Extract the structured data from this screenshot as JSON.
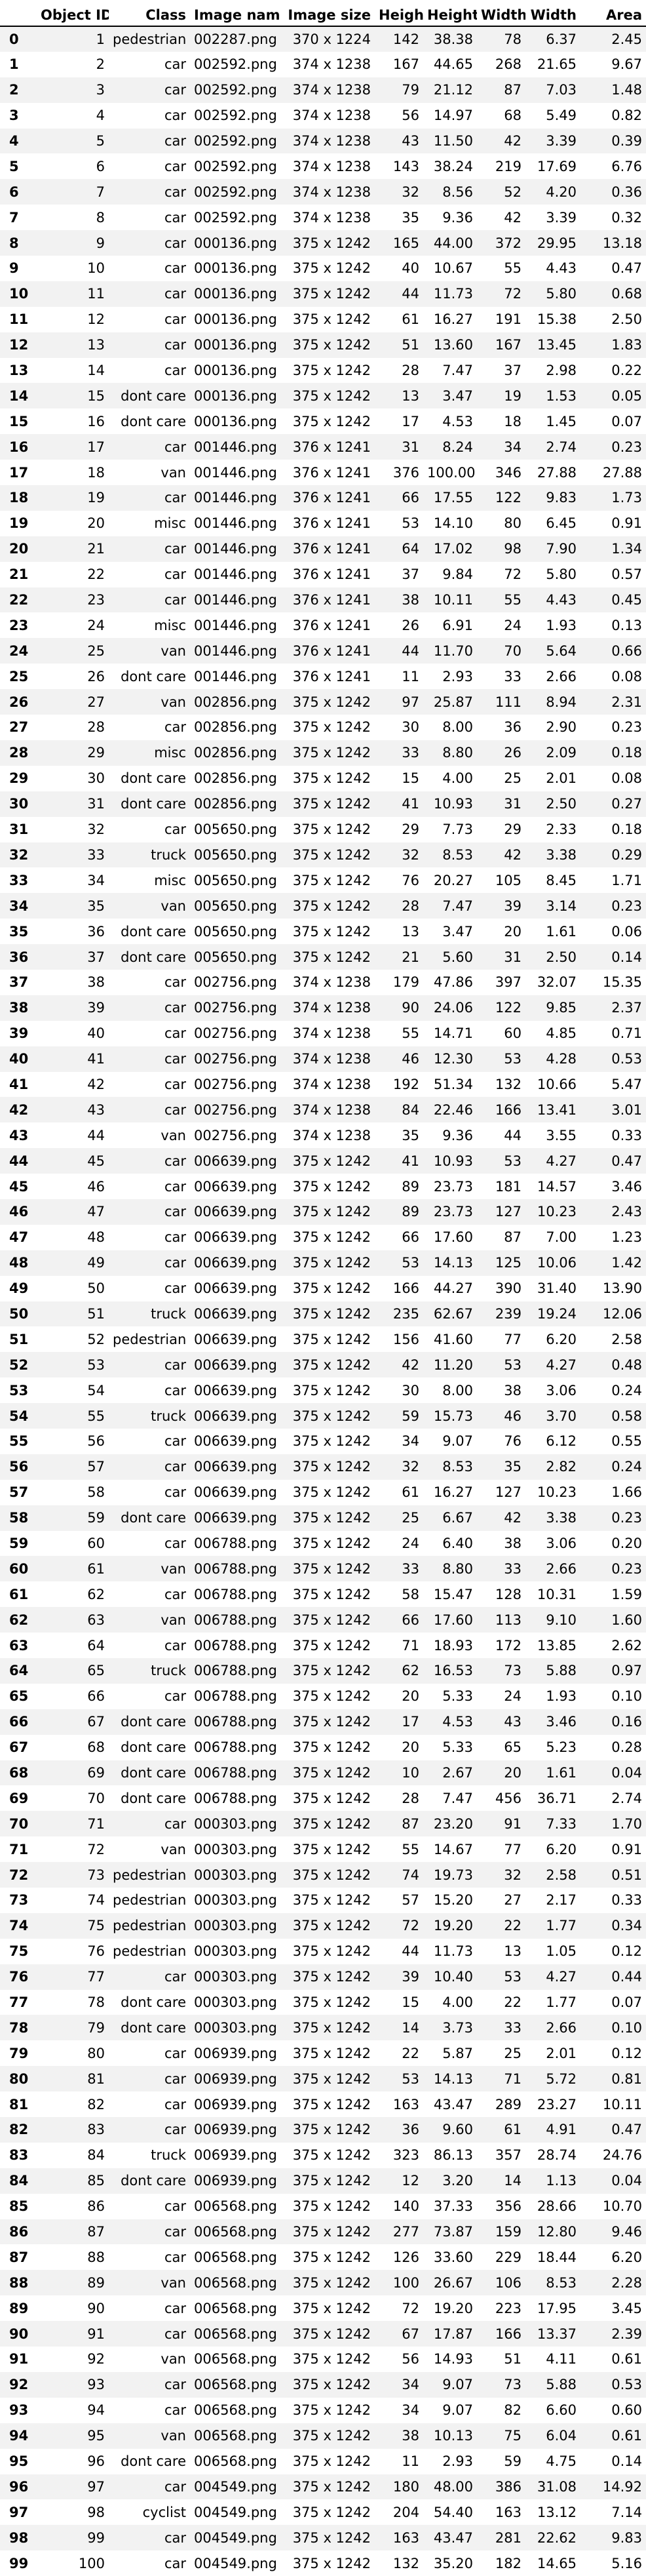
{
  "table": {
    "columns": [
      "",
      "Object ID",
      "Class",
      "Image name",
      "Image size",
      "Height",
      "Height",
      "Width",
      "Width",
      "Area"
    ],
    "rows": [
      [
        "0",
        "1",
        "pedestrian",
        "002287.png",
        "370 x 1224",
        "142",
        "38.38",
        "78",
        "6.37",
        "2.45"
      ],
      [
        "1",
        "2",
        "car",
        "002592.png",
        "374 x 1238",
        "167",
        "44.65",
        "268",
        "21.65",
        "9.67"
      ],
      [
        "2",
        "3",
        "car",
        "002592.png",
        "374 x 1238",
        "79",
        "21.12",
        "87",
        "7.03",
        "1.48"
      ],
      [
        "3",
        "4",
        "car",
        "002592.png",
        "374 x 1238",
        "56",
        "14.97",
        "68",
        "5.49",
        "0.82"
      ],
      [
        "4",
        "5",
        "car",
        "002592.png",
        "374 x 1238",
        "43",
        "11.50",
        "42",
        "3.39",
        "0.39"
      ],
      [
        "5",
        "6",
        "car",
        "002592.png",
        "374 x 1238",
        "143",
        "38.24",
        "219",
        "17.69",
        "6.76"
      ],
      [
        "6",
        "7",
        "car",
        "002592.png",
        "374 x 1238",
        "32",
        "8.56",
        "52",
        "4.20",
        "0.36"
      ],
      [
        "7",
        "8",
        "car",
        "002592.png",
        "374 x 1238",
        "35",
        "9.36",
        "42",
        "3.39",
        "0.32"
      ],
      [
        "8",
        "9",
        "car",
        "000136.png",
        "375 x 1242",
        "165",
        "44.00",
        "372",
        "29.95",
        "13.18"
      ],
      [
        "9",
        "10",
        "car",
        "000136.png",
        "375 x 1242",
        "40",
        "10.67",
        "55",
        "4.43",
        "0.47"
      ],
      [
        "10",
        "11",
        "car",
        "000136.png",
        "375 x 1242",
        "44",
        "11.73",
        "72",
        "5.80",
        "0.68"
      ],
      [
        "11",
        "12",
        "car",
        "000136.png",
        "375 x 1242",
        "61",
        "16.27",
        "191",
        "15.38",
        "2.50"
      ],
      [
        "12",
        "13",
        "car",
        "000136.png",
        "375 x 1242",
        "51",
        "13.60",
        "167",
        "13.45",
        "1.83"
      ],
      [
        "13",
        "14",
        "car",
        "000136.png",
        "375 x 1242",
        "28",
        "7.47",
        "37",
        "2.98",
        "0.22"
      ],
      [
        "14",
        "15",
        "dont care",
        "000136.png",
        "375 x 1242",
        "13",
        "3.47",
        "19",
        "1.53",
        "0.05"
      ],
      [
        "15",
        "16",
        "dont care",
        "000136.png",
        "375 x 1242",
        "17",
        "4.53",
        "18",
        "1.45",
        "0.07"
      ],
      [
        "16",
        "17",
        "car",
        "001446.png",
        "376 x 1241",
        "31",
        "8.24",
        "34",
        "2.74",
        "0.23"
      ],
      [
        "17",
        "18",
        "van",
        "001446.png",
        "376 x 1241",
        "376",
        "100.00",
        "346",
        "27.88",
        "27.88"
      ],
      [
        "18",
        "19",
        "car",
        "001446.png",
        "376 x 1241",
        "66",
        "17.55",
        "122",
        "9.83",
        "1.73"
      ],
      [
        "19",
        "20",
        "misc",
        "001446.png",
        "376 x 1241",
        "53",
        "14.10",
        "80",
        "6.45",
        "0.91"
      ],
      [
        "20",
        "21",
        "car",
        "001446.png",
        "376 x 1241",
        "64",
        "17.02",
        "98",
        "7.90",
        "1.34"
      ],
      [
        "21",
        "22",
        "car",
        "001446.png",
        "376 x 1241",
        "37",
        "9.84",
        "72",
        "5.80",
        "0.57"
      ],
      [
        "22",
        "23",
        "car",
        "001446.png",
        "376 x 1241",
        "38",
        "10.11",
        "55",
        "4.43",
        "0.45"
      ],
      [
        "23",
        "24",
        "misc",
        "001446.png",
        "376 x 1241",
        "26",
        "6.91",
        "24",
        "1.93",
        "0.13"
      ],
      [
        "24",
        "25",
        "van",
        "001446.png",
        "376 x 1241",
        "44",
        "11.70",
        "70",
        "5.64",
        "0.66"
      ],
      [
        "25",
        "26",
        "dont care",
        "001446.png",
        "376 x 1241",
        "11",
        "2.93",
        "33",
        "2.66",
        "0.08"
      ],
      [
        "26",
        "27",
        "van",
        "002856.png",
        "375 x 1242",
        "97",
        "25.87",
        "111",
        "8.94",
        "2.31"
      ],
      [
        "27",
        "28",
        "car",
        "002856.png",
        "375 x 1242",
        "30",
        "8.00",
        "36",
        "2.90",
        "0.23"
      ],
      [
        "28",
        "29",
        "misc",
        "002856.png",
        "375 x 1242",
        "33",
        "8.80",
        "26",
        "2.09",
        "0.18"
      ],
      [
        "29",
        "30",
        "dont care",
        "002856.png",
        "375 x 1242",
        "15",
        "4.00",
        "25",
        "2.01",
        "0.08"
      ],
      [
        "30",
        "31",
        "dont care",
        "002856.png",
        "375 x 1242",
        "41",
        "10.93",
        "31",
        "2.50",
        "0.27"
      ],
      [
        "31",
        "32",
        "car",
        "005650.png",
        "375 x 1242",
        "29",
        "7.73",
        "29",
        "2.33",
        "0.18"
      ],
      [
        "32",
        "33",
        "truck",
        "005650.png",
        "375 x 1242",
        "32",
        "8.53",
        "42",
        "3.38",
        "0.29"
      ],
      [
        "33",
        "34",
        "misc",
        "005650.png",
        "375 x 1242",
        "76",
        "20.27",
        "105",
        "8.45",
        "1.71"
      ],
      [
        "34",
        "35",
        "van",
        "005650.png",
        "375 x 1242",
        "28",
        "7.47",
        "39",
        "3.14",
        "0.23"
      ],
      [
        "35",
        "36",
        "dont care",
        "005650.png",
        "375 x 1242",
        "13",
        "3.47",
        "20",
        "1.61",
        "0.06"
      ],
      [
        "36",
        "37",
        "dont care",
        "005650.png",
        "375 x 1242",
        "21",
        "5.60",
        "31",
        "2.50",
        "0.14"
      ],
      [
        "37",
        "38",
        "car",
        "002756.png",
        "374 x 1238",
        "179",
        "47.86",
        "397",
        "32.07",
        "15.35"
      ],
      [
        "38",
        "39",
        "car",
        "002756.png",
        "374 x 1238",
        "90",
        "24.06",
        "122",
        "9.85",
        "2.37"
      ],
      [
        "39",
        "40",
        "car",
        "002756.png",
        "374 x 1238",
        "55",
        "14.71",
        "60",
        "4.85",
        "0.71"
      ],
      [
        "40",
        "41",
        "car",
        "002756.png",
        "374 x 1238",
        "46",
        "12.30",
        "53",
        "4.28",
        "0.53"
      ],
      [
        "41",
        "42",
        "car",
        "002756.png",
        "374 x 1238",
        "192",
        "51.34",
        "132",
        "10.66",
        "5.47"
      ],
      [
        "42",
        "43",
        "car",
        "002756.png",
        "374 x 1238",
        "84",
        "22.46",
        "166",
        "13.41",
        "3.01"
      ],
      [
        "43",
        "44",
        "van",
        "002756.png",
        "374 x 1238",
        "35",
        "9.36",
        "44",
        "3.55",
        "0.33"
      ],
      [
        "44",
        "45",
        "car",
        "006639.png",
        "375 x 1242",
        "41",
        "10.93",
        "53",
        "4.27",
        "0.47"
      ],
      [
        "45",
        "46",
        "car",
        "006639.png",
        "375 x 1242",
        "89",
        "23.73",
        "181",
        "14.57",
        "3.46"
      ],
      [
        "46",
        "47",
        "car",
        "006639.png",
        "375 x 1242",
        "89",
        "23.73",
        "127",
        "10.23",
        "2.43"
      ],
      [
        "47",
        "48",
        "car",
        "006639.png",
        "375 x 1242",
        "66",
        "17.60",
        "87",
        "7.00",
        "1.23"
      ],
      [
        "48",
        "49",
        "car",
        "006639.png",
        "375 x 1242",
        "53",
        "14.13",
        "125",
        "10.06",
        "1.42"
      ],
      [
        "49",
        "50",
        "car",
        "006639.png",
        "375 x 1242",
        "166",
        "44.27",
        "390",
        "31.40",
        "13.90"
      ],
      [
        "50",
        "51",
        "truck",
        "006639.png",
        "375 x 1242",
        "235",
        "62.67",
        "239",
        "19.24",
        "12.06"
      ],
      [
        "51",
        "52",
        "pedestrian",
        "006639.png",
        "375 x 1242",
        "156",
        "41.60",
        "77",
        "6.20",
        "2.58"
      ],
      [
        "52",
        "53",
        "car",
        "006639.png",
        "375 x 1242",
        "42",
        "11.20",
        "53",
        "4.27",
        "0.48"
      ],
      [
        "53",
        "54",
        "car",
        "006639.png",
        "375 x 1242",
        "30",
        "8.00",
        "38",
        "3.06",
        "0.24"
      ],
      [
        "54",
        "55",
        "truck",
        "006639.png",
        "375 x 1242",
        "59",
        "15.73",
        "46",
        "3.70",
        "0.58"
      ],
      [
        "55",
        "56",
        "car",
        "006639.png",
        "375 x 1242",
        "34",
        "9.07",
        "76",
        "6.12",
        "0.55"
      ],
      [
        "56",
        "57",
        "car",
        "006639.png",
        "375 x 1242",
        "32",
        "8.53",
        "35",
        "2.82",
        "0.24"
      ],
      [
        "57",
        "58",
        "car",
        "006639.png",
        "375 x 1242",
        "61",
        "16.27",
        "127",
        "10.23",
        "1.66"
      ],
      [
        "58",
        "59",
        "dont care",
        "006639.png",
        "375 x 1242",
        "25",
        "6.67",
        "42",
        "3.38",
        "0.23"
      ],
      [
        "59",
        "60",
        "car",
        "006788.png",
        "375 x 1242",
        "24",
        "6.40",
        "38",
        "3.06",
        "0.20"
      ],
      [
        "60",
        "61",
        "van",
        "006788.png",
        "375 x 1242",
        "33",
        "8.80",
        "33",
        "2.66",
        "0.23"
      ],
      [
        "61",
        "62",
        "car",
        "006788.png",
        "375 x 1242",
        "58",
        "15.47",
        "128",
        "10.31",
        "1.59"
      ],
      [
        "62",
        "63",
        "van",
        "006788.png",
        "375 x 1242",
        "66",
        "17.60",
        "113",
        "9.10",
        "1.60"
      ],
      [
        "63",
        "64",
        "car",
        "006788.png",
        "375 x 1242",
        "71",
        "18.93",
        "172",
        "13.85",
        "2.62"
      ],
      [
        "64",
        "65",
        "truck",
        "006788.png",
        "375 x 1242",
        "62",
        "16.53",
        "73",
        "5.88",
        "0.97"
      ],
      [
        "65",
        "66",
        "car",
        "006788.png",
        "375 x 1242",
        "20",
        "5.33",
        "24",
        "1.93",
        "0.10"
      ],
      [
        "66",
        "67",
        "dont care",
        "006788.png",
        "375 x 1242",
        "17",
        "4.53",
        "43",
        "3.46",
        "0.16"
      ],
      [
        "67",
        "68",
        "dont care",
        "006788.png",
        "375 x 1242",
        "20",
        "5.33",
        "65",
        "5.23",
        "0.28"
      ],
      [
        "68",
        "69",
        "dont care",
        "006788.png",
        "375 x 1242",
        "10",
        "2.67",
        "20",
        "1.61",
        "0.04"
      ],
      [
        "69",
        "70",
        "dont care",
        "006788.png",
        "375 x 1242",
        "28",
        "7.47",
        "456",
        "36.71",
        "2.74"
      ],
      [
        "70",
        "71",
        "car",
        "000303.png",
        "375 x 1242",
        "87",
        "23.20",
        "91",
        "7.33",
        "1.70"
      ],
      [
        "71",
        "72",
        "van",
        "000303.png",
        "375 x 1242",
        "55",
        "14.67",
        "77",
        "6.20",
        "0.91"
      ],
      [
        "72",
        "73",
        "pedestrian",
        "000303.png",
        "375 x 1242",
        "74",
        "19.73",
        "32",
        "2.58",
        "0.51"
      ],
      [
        "73",
        "74",
        "pedestrian",
        "000303.png",
        "375 x 1242",
        "57",
        "15.20",
        "27",
        "2.17",
        "0.33"
      ],
      [
        "74",
        "75",
        "pedestrian",
        "000303.png",
        "375 x 1242",
        "72",
        "19.20",
        "22",
        "1.77",
        "0.34"
      ],
      [
        "75",
        "76",
        "pedestrian",
        "000303.png",
        "375 x 1242",
        "44",
        "11.73",
        "13",
        "1.05",
        "0.12"
      ],
      [
        "76",
        "77",
        "car",
        "000303.png",
        "375 x 1242",
        "39",
        "10.40",
        "53",
        "4.27",
        "0.44"
      ],
      [
        "77",
        "78",
        "dont care",
        "000303.png",
        "375 x 1242",
        "15",
        "4.00",
        "22",
        "1.77",
        "0.07"
      ],
      [
        "78",
        "79",
        "dont care",
        "000303.png",
        "375 x 1242",
        "14",
        "3.73",
        "33",
        "2.66",
        "0.10"
      ],
      [
        "79",
        "80",
        "car",
        "006939.png",
        "375 x 1242",
        "22",
        "5.87",
        "25",
        "2.01",
        "0.12"
      ],
      [
        "80",
        "81",
        "car",
        "006939.png",
        "375 x 1242",
        "53",
        "14.13",
        "71",
        "5.72",
        "0.81"
      ],
      [
        "81",
        "82",
        "car",
        "006939.png",
        "375 x 1242",
        "163",
        "43.47",
        "289",
        "23.27",
        "10.11"
      ],
      [
        "82",
        "83",
        "car",
        "006939.png",
        "375 x 1242",
        "36",
        "9.60",
        "61",
        "4.91",
        "0.47"
      ],
      [
        "83",
        "84",
        "truck",
        "006939.png",
        "375 x 1242",
        "323",
        "86.13",
        "357",
        "28.74",
        "24.76"
      ],
      [
        "84",
        "85",
        "dont care",
        "006939.png",
        "375 x 1242",
        "12",
        "3.20",
        "14",
        "1.13",
        "0.04"
      ],
      [
        "85",
        "86",
        "car",
        "006568.png",
        "375 x 1242",
        "140",
        "37.33",
        "356",
        "28.66",
        "10.70"
      ],
      [
        "86",
        "87",
        "car",
        "006568.png",
        "375 x 1242",
        "277",
        "73.87",
        "159",
        "12.80",
        "9.46"
      ],
      [
        "87",
        "88",
        "car",
        "006568.png",
        "375 x 1242",
        "126",
        "33.60",
        "229",
        "18.44",
        "6.20"
      ],
      [
        "88",
        "89",
        "van",
        "006568.png",
        "375 x 1242",
        "100",
        "26.67",
        "106",
        "8.53",
        "2.28"
      ],
      [
        "89",
        "90",
        "car",
        "006568.png",
        "375 x 1242",
        "72",
        "19.20",
        "223",
        "17.95",
        "3.45"
      ],
      [
        "90",
        "91",
        "car",
        "006568.png",
        "375 x 1242",
        "67",
        "17.87",
        "166",
        "13.37",
        "2.39"
      ],
      [
        "91",
        "92",
        "van",
        "006568.png",
        "375 x 1242",
        "56",
        "14.93",
        "51",
        "4.11",
        "0.61"
      ],
      [
        "92",
        "93",
        "car",
        "006568.png",
        "375 x 1242",
        "34",
        "9.07",
        "73",
        "5.88",
        "0.53"
      ],
      [
        "93",
        "94",
        "car",
        "006568.png",
        "375 x 1242",
        "34",
        "9.07",
        "82",
        "6.60",
        "0.60"
      ],
      [
        "94",
        "95",
        "van",
        "006568.png",
        "375 x 1242",
        "38",
        "10.13",
        "75",
        "6.04",
        "0.61"
      ],
      [
        "95",
        "96",
        "dont care",
        "006568.png",
        "375 x 1242",
        "11",
        "2.93",
        "59",
        "4.75",
        "0.14"
      ],
      [
        "96",
        "97",
        "car",
        "004549.png",
        "375 x 1242",
        "180",
        "48.00",
        "386",
        "31.08",
        "14.92"
      ],
      [
        "97",
        "98",
        "cyclist",
        "004549.png",
        "375 x 1242",
        "204",
        "54.40",
        "163",
        "13.12",
        "7.14"
      ],
      [
        "98",
        "99",
        "car",
        "004549.png",
        "375 x 1242",
        "163",
        "43.47",
        "281",
        "22.62",
        "9.83"
      ],
      [
        "99",
        "100",
        "car",
        "004549.png",
        "375 x 1242",
        "132",
        "35.20",
        "182",
        "14.65",
        "5.16"
      ]
    ]
  }
}
